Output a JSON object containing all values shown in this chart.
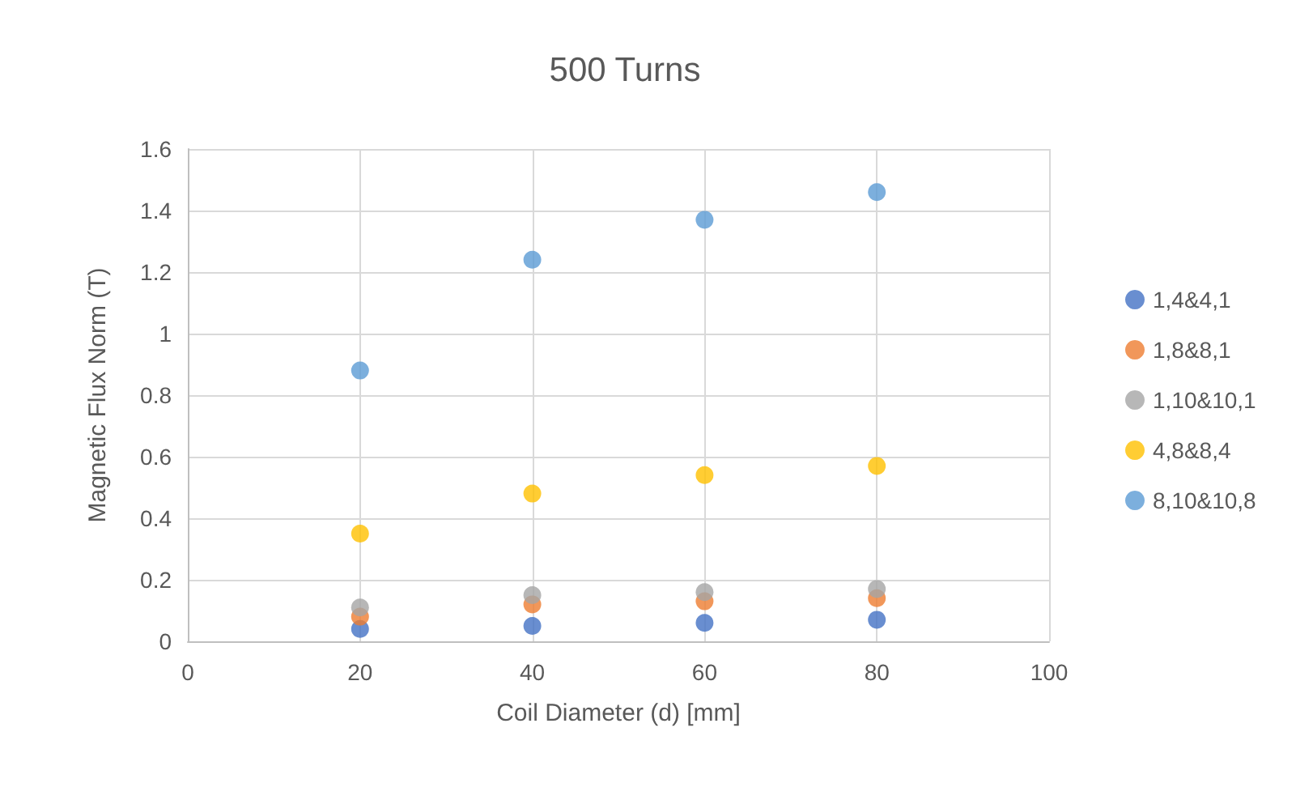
{
  "chart_data": {
    "type": "scatter",
    "title": "500 Turns",
    "xlabel": "Coil Diameter (d) [mm]",
    "ylabel": "Magnetic Flux Norm (T)",
    "x": [
      20,
      40,
      60,
      80
    ],
    "series": [
      {
        "name": "1,4&4,1",
        "color": "#4472c4",
        "values": [
          0.04,
          0.05,
          0.06,
          0.07
        ]
      },
      {
        "name": "1,8&8,1",
        "color": "#ed7d31",
        "values": [
          0.08,
          0.12,
          0.13,
          0.14
        ]
      },
      {
        "name": "1,10&10,1",
        "color": "#a5a5a5",
        "values": [
          0.11,
          0.15,
          0.16,
          0.17
        ]
      },
      {
        "name": "4,8&8,4",
        "color": "#ffc000",
        "values": [
          0.35,
          0.48,
          0.54,
          0.57
        ]
      },
      {
        "name": "8,10&10,8",
        "color": "#5b9bd5",
        "values": [
          0.88,
          1.24,
          1.37,
          1.46
        ]
      }
    ],
    "xlim": [
      0,
      100
    ],
    "xticks": [
      0,
      20,
      40,
      60,
      80,
      100
    ],
    "ylim": [
      0,
      1.6
    ],
    "yticks": [
      0,
      0.2,
      0.4,
      0.6,
      0.8,
      1,
      1.2,
      1.4,
      1.6
    ],
    "grid": true,
    "legend": "right",
    "marker": "circle"
  }
}
